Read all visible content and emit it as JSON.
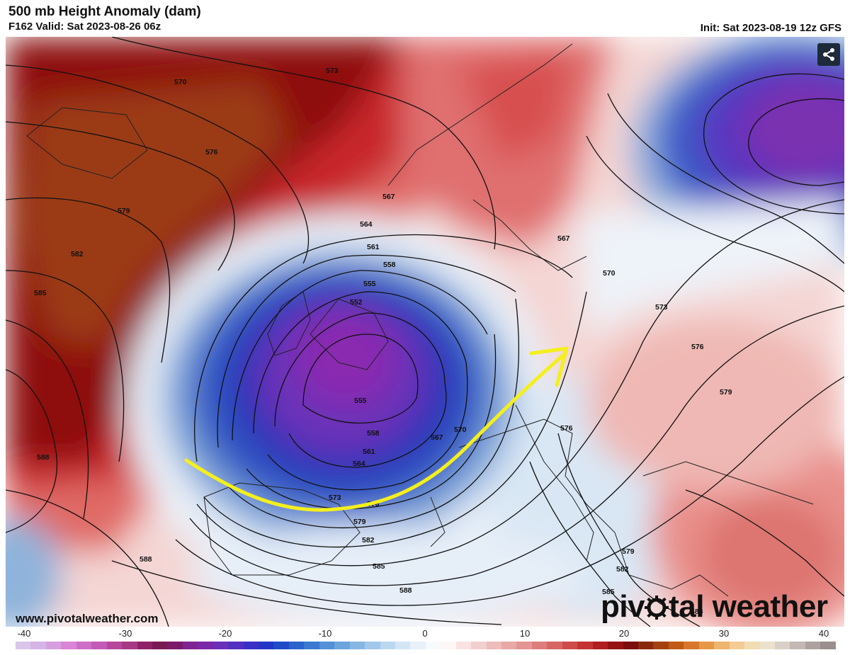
{
  "header": {
    "title": "500 mb Height Anomaly (dam)",
    "valid": "F162 Valid: Sat 2023-08-26 06z",
    "init": "Init: Sat 2023-08-19 12z GFS"
  },
  "footer": {
    "site_url": "www.pivotalweather.com",
    "brand": {
      "part1": "piv",
      "part2": "tal weather"
    }
  },
  "share_icon": "share-icon",
  "contour_labels": [
    "570",
    "573",
    "576",
    "579",
    "582",
    "585",
    "588",
    "567",
    "564",
    "561",
    "558",
    "555",
    "552",
    "555",
    "558",
    "561",
    "564",
    "567",
    "570",
    "573",
    "576",
    "579",
    "582",
    "585",
    "588",
    "567",
    "570",
    "573",
    "576",
    "579",
    "576",
    "579",
    "582",
    "585",
    "588",
    "588"
  ],
  "colorbar": {
    "ticks": [
      "-40",
      "-30",
      "-20",
      "-10",
      "0",
      "10",
      "20",
      "30",
      "40"
    ],
    "colors": [
      "#d9c6ea",
      "#d5b4e6",
      "#d59fe0",
      "#da85d6",
      "#cf6ec8",
      "#c45ab8",
      "#b7479d",
      "#a83885",
      "#8f2167",
      "#7a1a52",
      "#7c1a6a",
      "#7f2390",
      "#7a28a8",
      "#6a30b8",
      "#5430c0",
      "#3a30c6",
      "#2436c6",
      "#1f4bc8",
      "#2b63cc",
      "#3c7ad2",
      "#5390d8",
      "#6ca4dd",
      "#86b7e3",
      "#a1c8ea",
      "#bbd8f0",
      "#d3e6f5",
      "#e8f1f9",
      "#f7fafd",
      "#fdf6f5",
      "#f8e3e2",
      "#f2cfcf",
      "#edbcbb",
      "#e8a8a7",
      "#e39594",
      "#dd7e7c",
      "#d66664",
      "#cf4b4a",
      "#c43433",
      "#b01f20",
      "#961213",
      "#7d0c0c",
      "#8a2a0c",
      "#a4420f",
      "#c25a14",
      "#d8762a",
      "#e69848",
      "#eeb56e",
      "#f2cc92",
      "#f1dcb4",
      "#ece1cc",
      "#d9d0c8",
      "#c3b8b4",
      "#aea2a0",
      "#9a8f8e"
    ]
  }
}
